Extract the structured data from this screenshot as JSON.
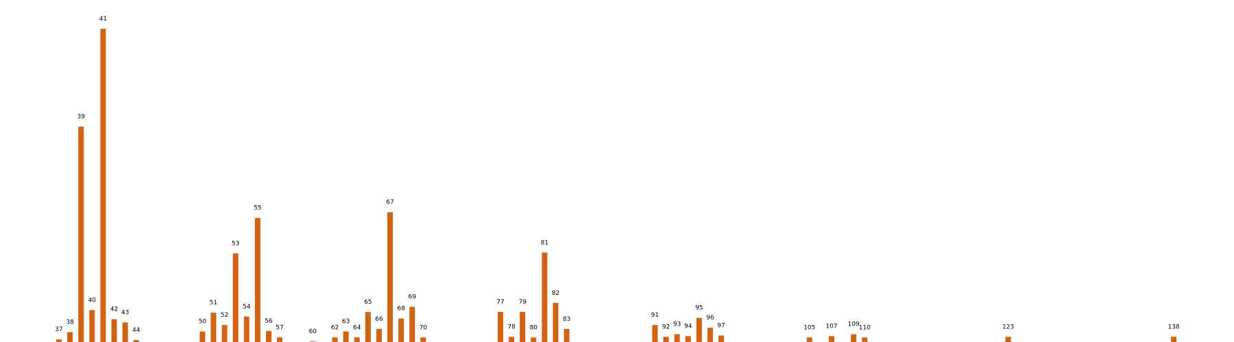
{
  "chart_data": {
    "type": "bar",
    "bar_color": "#d4620f",
    "x": [
      37,
      38,
      39,
      40,
      41,
      42,
      43,
      44,
      50,
      51,
      52,
      53,
      54,
      55,
      56,
      57,
      60,
      62,
      63,
      64,
      65,
      66,
      67,
      68,
      69,
      70,
      77,
      78,
      79,
      80,
      81,
      82,
      83,
      91,
      92,
      93,
      94,
      95,
      96,
      97,
      105,
      107,
      109,
      110,
      123,
      138
    ],
    "labels": [
      "37",
      "38",
      "39",
      "40",
      "41",
      "42",
      "43",
      "44",
      "50",
      "51",
      "52",
      "53",
      "54",
      "55",
      "56",
      "57",
      "60",
      "62",
      "63",
      "64",
      "65",
      "66",
      "67",
      "68",
      "69",
      "70",
      "77",
      "78",
      "79",
      "80",
      "81",
      "82",
      "83",
      "91",
      "92",
      "93",
      "94",
      "95",
      "96",
      "97",
      "105",
      "107",
      "109",
      "110",
      "123",
      "138"
    ],
    "values": [
      4,
      15,
      330,
      49,
      480,
      35,
      30,
      3,
      16,
      45,
      26,
      136,
      39,
      190,
      17,
      7,
      1,
      7,
      16,
      7,
      46,
      20,
      199,
      36,
      54,
      7,
      46,
      8,
      46,
      7,
      137,
      60,
      20,
      26,
      8,
      12,
      9,
      37,
      22,
      10,
      7,
      9,
      12,
      7,
      8,
      8
    ],
    "ylim": [
      0,
      500
    ],
    "xlim": [
      32,
      141
    ],
    "grid": false,
    "axes_visible": false
  }
}
